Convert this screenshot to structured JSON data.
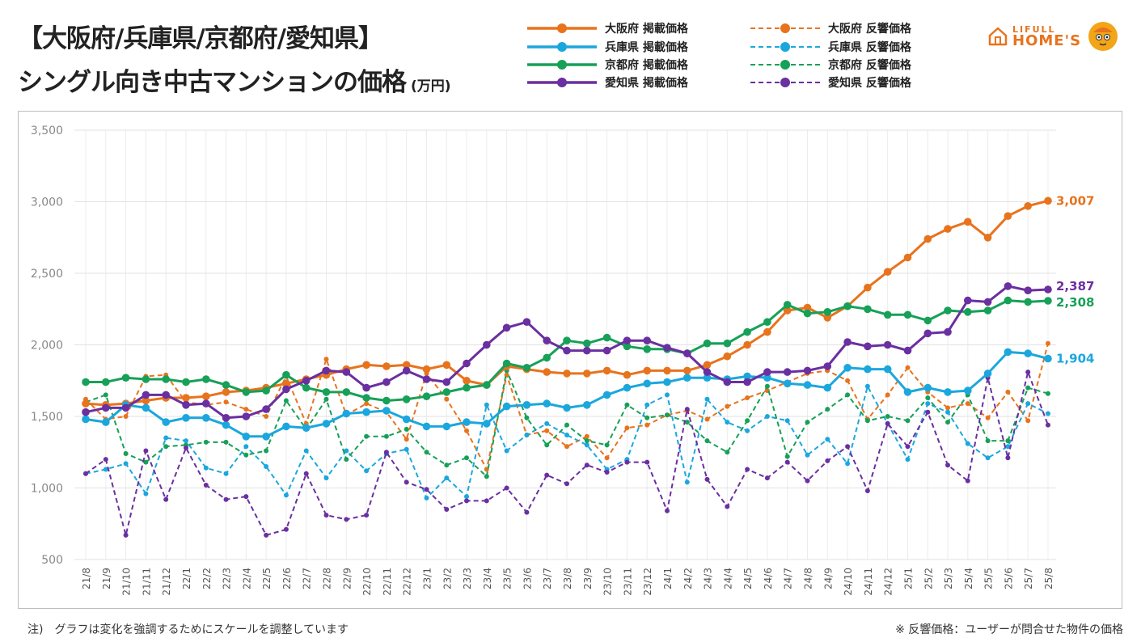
{
  "title_line1": "【大阪府/兵庫県/京都府/愛知県】",
  "title_line2": "シングル向き中古マンションの価格",
  "title_unit": "(万円)",
  "brand": {
    "top": "LIFULL",
    "bottom": "HOME'S"
  },
  "footnote_left": "注)　グラフは変化を強調するためにスケールを調整しています",
  "footnote_right": "※ 反響価格：ユーザーが問合せた物件の価格",
  "chart_data": {
    "type": "line",
    "ylim": [
      500,
      3500
    ],
    "yticks": [
      500,
      1000,
      1500,
      2000,
      2500,
      3000,
      3500
    ],
    "ytick_labels": [
      "500",
      "1,000",
      "1,500",
      "2,000",
      "2,500",
      "3,000",
      "3,500"
    ],
    "grid": true,
    "legend_position": "top",
    "categories": [
      "21/8",
      "21/9",
      "21/10",
      "21/11",
      "21/12",
      "22/1",
      "22/2",
      "22/3",
      "22/4",
      "22/5",
      "22/6",
      "22/7",
      "22/8",
      "22/9",
      "22/10",
      "22/11",
      "22/12",
      "23/1",
      "23/2",
      "23/3",
      "23/4",
      "23/5",
      "23/6",
      "23/7",
      "23/8",
      "23/9",
      "23/10",
      "23/11",
      "23/12",
      "24/1",
      "24/2",
      "24/3",
      "24/4",
      "24/5",
      "24/6",
      "24/7",
      "24/8",
      "24/9",
      "24/10",
      "24/11",
      "24/12",
      "25/1",
      "25/2",
      "25/3",
      "25/4",
      "25/5",
      "25/6",
      "25/7",
      "25/8"
    ],
    "series": [
      {
        "name": "大阪府 掲載価格",
        "style": "solid",
        "color": "#e8731d",
        "values": [
          1590,
          1580,
          1590,
          1610,
          1630,
          1630,
          1640,
          1670,
          1680,
          1700,
          1730,
          1760,
          1790,
          1830,
          1860,
          1850,
          1860,
          1830,
          1860,
          1750,
          1720,
          1850,
          1830,
          1810,
          1800,
          1800,
          1820,
          1790,
          1820,
          1820,
          1820,
          1860,
          1920,
          2000,
          2090,
          2240,
          2260,
          2190,
          2270,
          2400,
          2510,
          2610,
          2740,
          2810,
          2860,
          2750,
          2900,
          2970,
          3007
        ],
        "end_label": "3,007"
      },
      {
        "name": "兵庫県 掲載価格",
        "style": "solid",
        "color": "#1ba7dd",
        "values": [
          1480,
          1460,
          1580,
          1560,
          1460,
          1490,
          1490,
          1440,
          1360,
          1360,
          1430,
          1420,
          1450,
          1520,
          1530,
          1540,
          1480,
          1430,
          1430,
          1460,
          1450,
          1570,
          1580,
          1590,
          1560,
          1580,
          1650,
          1700,
          1730,
          1740,
          1770,
          1770,
          1760,
          1780,
          1770,
          1730,
          1720,
          1700,
          1840,
          1830,
          1830,
          1670,
          1700,
          1670,
          1680,
          1800,
          1950,
          1940,
          1904
        ],
        "end_label": "1,904"
      },
      {
        "name": "京都府 掲載価格",
        "style": "solid",
        "color": "#17a058",
        "values": [
          1740,
          1740,
          1770,
          1760,
          1760,
          1740,
          1760,
          1720,
          1670,
          1680,
          1790,
          1700,
          1670,
          1670,
          1630,
          1610,
          1620,
          1640,
          1670,
          1700,
          1720,
          1870,
          1840,
          1910,
          2030,
          2010,
          2050,
          1990,
          1970,
          1970,
          1940,
          2010,
          2010,
          2090,
          2160,
          2280,
          2220,
          2230,
          2270,
          2250,
          2210,
          2210,
          2170,
          2240,
          2230,
          2240,
          2310,
          2300,
          2308
        ],
        "end_label": "2,308"
      },
      {
        "name": "愛知県 掲載価格",
        "style": "solid",
        "color": "#6a2fa0",
        "values": [
          1530,
          1560,
          1560,
          1650,
          1650,
          1580,
          1590,
          1490,
          1500,
          1550,
          1690,
          1750,
          1820,
          1810,
          1700,
          1740,
          1820,
          1760,
          1740,
          1870,
          2000,
          2120,
          2160,
          2030,
          1960,
          1960,
          1960,
          2030,
          2030,
          1980,
          1940,
          1810,
          1740,
          1740,
          1810,
          1810,
          1820,
          1850,
          2020,
          1990,
          2000,
          1960,
          2080,
          2090,
          2310,
          2300,
          2410,
          2380,
          2387
        ],
        "end_label": "2,387"
      },
      {
        "name": "大阪府 反響価格",
        "style": "dashed",
        "color": "#e8731d",
        "values": [
          1620,
          1480,
          1500,
          1780,
          1790,
          1600,
          1580,
          1600,
          1550,
          1500,
          1780,
          1450,
          1900,
          1510,
          1590,
          1530,
          1340,
          1800,
          1620,
          1400,
          1130,
          1790,
          1370,
          1400,
          1290,
          1360,
          1210,
          1420,
          1440,
          1510,
          1540,
          1480,
          1570,
          1630,
          1680,
          1740,
          1800,
          1820,
          1750,
          1480,
          1650,
          1840,
          1670,
          1560,
          1590,
          1490,
          1670,
          1470,
          2010
        ]
      },
      {
        "name": "兵庫県 反響価格",
        "style": "dashed",
        "color": "#1ba7dd",
        "values": [
          1100,
          1130,
          1170,
          960,
          1350,
          1330,
          1140,
          1100,
          1290,
          1150,
          950,
          1260,
          1070,
          1260,
          1120,
          1240,
          1270,
          930,
          1070,
          940,
          1580,
          1260,
          1370,
          1450,
          1370,
          1300,
          1130,
          1200,
          1580,
          1650,
          1040,
          1620,
          1460,
          1400,
          1500,
          1470,
          1230,
          1340,
          1170,
          1710,
          1450,
          1200,
          1590,
          1530,
          1310,
          1210,
          1290,
          1590,
          1520
        ]
      },
      {
        "name": "京都府 反響価格",
        "style": "dashed",
        "color": "#17a058",
        "values": [
          1600,
          1650,
          1240,
          1180,
          1290,
          1300,
          1320,
          1320,
          1230,
          1260,
          1610,
          1410,
          1620,
          1200,
          1360,
          1360,
          1410,
          1250,
          1160,
          1210,
          1080,
          1820,
          1490,
          1300,
          1440,
          1330,
          1300,
          1580,
          1490,
          1510,
          1460,
          1330,
          1250,
          1470,
          1710,
          1220,
          1460,
          1550,
          1650,
          1470,
          1500,
          1470,
          1630,
          1460,
          1650,
          1330,
          1330,
          1700,
          1660
        ]
      },
      {
        "name": "愛知県 反響価格",
        "style": "dashed",
        "color": "#6a2fa0",
        "values": [
          1100,
          1200,
          670,
          1260,
          920,
          1280,
          1020,
          920,
          940,
          670,
          710,
          1100,
          810,
          780,
          810,
          1250,
          1040,
          990,
          850,
          910,
          910,
          1000,
          830,
          1090,
          1030,
          1160,
          1110,
          1180,
          1180,
          840,
          1550,
          1060,
          870,
          1130,
          1070,
          1180,
          1050,
          1190,
          1290,
          980,
          1450,
          1290,
          1530,
          1160,
          1050,
          1770,
          1210,
          1810,
          1440
        ]
      }
    ]
  }
}
